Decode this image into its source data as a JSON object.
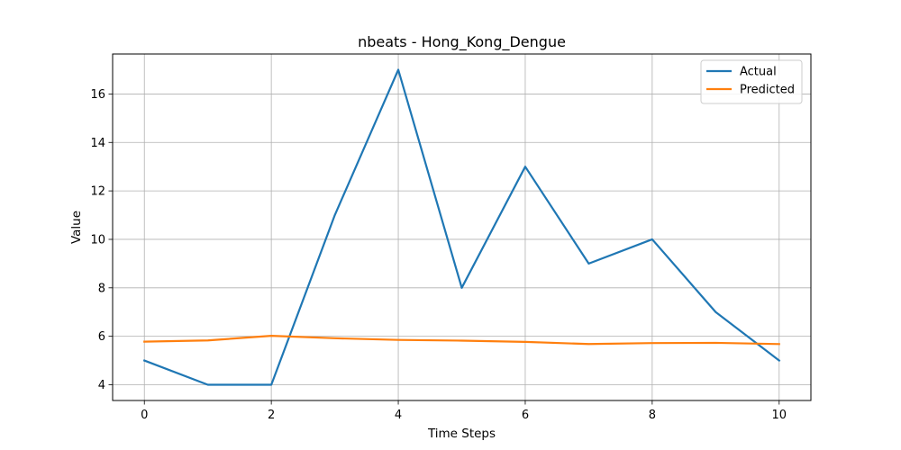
{
  "chart_data": {
    "type": "line",
    "title": "nbeats - Hong_Kong_Dengue",
    "xlabel": "Time Steps",
    "ylabel": "Value",
    "x": [
      0,
      1,
      2,
      3,
      4,
      5,
      6,
      7,
      8,
      9,
      10
    ],
    "xlim": [
      -0.5,
      10.5
    ],
    "ylim": [
      3.35,
      17.65
    ],
    "xticks": [
      0,
      2,
      4,
      6,
      8,
      10
    ],
    "yticks": [
      4,
      6,
      8,
      10,
      12,
      14,
      16
    ],
    "grid": true,
    "legend_position": "top-right",
    "series": [
      {
        "name": "Actual",
        "color": "#1f77b4",
        "values": [
          5,
          4,
          4,
          11,
          17,
          8,
          13,
          9,
          10,
          7,
          5
        ]
      },
      {
        "name": "Predicted",
        "color": "#ff7f0e",
        "values": [
          5.78,
          5.83,
          6.02,
          5.92,
          5.85,
          5.82,
          5.77,
          5.68,
          5.72,
          5.73,
          5.68
        ]
      }
    ]
  }
}
